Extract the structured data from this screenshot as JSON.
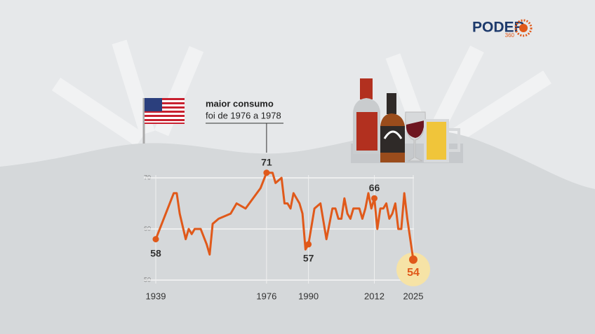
{
  "logo": {
    "name": "PODER",
    "suffix": "360"
  },
  "chart_data": {
    "type": "line",
    "annotation": [
      "maior consumo",
      "foi de 1976 a 1978"
    ],
    "x": [
      1939,
      1945,
      1946,
      1947,
      1949,
      1950,
      1951,
      1952,
      1954,
      1956,
      1957,
      1958,
      1960,
      1964,
      1966,
      1969,
      1974,
      1976,
      1977,
      1978,
      1979,
      1981,
      1982,
      1983,
      1984,
      1985,
      1987,
      1988,
      1989,
      1990,
      1992,
      1994,
      1996,
      1997,
      1998,
      1999,
      2000,
      2001,
      2002,
      2003,
      2004,
      2005,
      2006,
      2007,
      2008,
      2009,
      2010,
      2011,
      2012,
      2013,
      2014,
      2015,
      2016,
      2017,
      2018,
      2019,
      2020,
      2021,
      2022,
      2023,
      2024,
      2025
    ],
    "series": [
      {
        "color": "#e0591a",
        "values": [
          58,
          67,
          67,
          63,
          58,
          60,
          59,
          60,
          60,
          57,
          55,
          61,
          62,
          63,
          65,
          64,
          68,
          71,
          71,
          71,
          69,
          70,
          65,
          65,
          64,
          67,
          65,
          63,
          56,
          57,
          64,
          65,
          58,
          61,
          64,
          64,
          62,
          62,
          66,
          63,
          62,
          64,
          64,
          64,
          62,
          64,
          67,
          64,
          66,
          60,
          64,
          64,
          65,
          62,
          63,
          65,
          60,
          60,
          67,
          62,
          58,
          54
        ]
      }
    ],
    "xlim": [
      1939,
      2025
    ],
    "xticks": [
      1939,
      1976,
      1990,
      2012,
      2025
    ],
    "ylim": [
      50,
      72
    ],
    "yticks": [
      50,
      60,
      70
    ],
    "grid": true
  }
}
